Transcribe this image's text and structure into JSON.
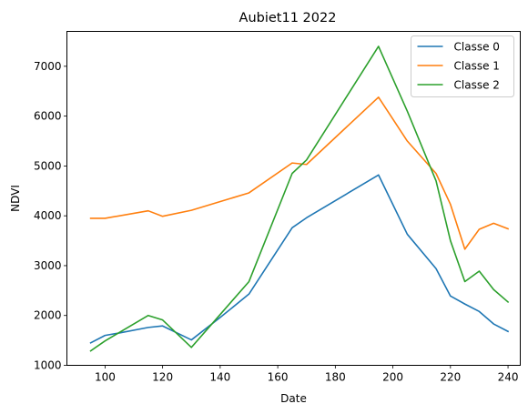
{
  "chart_data": {
    "type": "line",
    "title": "Aubiet11 2022",
    "xlabel": "Date",
    "ylabel": "NDVI",
    "xlim": [
      86.75,
      244.25
    ],
    "ylim": [
      1000,
      7700
    ],
    "xticks": [
      100,
      120,
      140,
      160,
      180,
      200,
      220,
      240
    ],
    "yticks": [
      1000,
      2000,
      3000,
      4000,
      5000,
      6000,
      7000
    ],
    "grid": false,
    "legend_position": "top-right",
    "series": [
      {
        "name": "Classe 0",
        "color": "#1f77b4",
        "x": [
          95,
          100,
          105,
          115,
          120,
          130,
          140,
          150,
          165,
          170,
          195,
          205,
          215,
          220,
          225,
          230,
          235,
          240
        ],
        "y": [
          1450,
          1600,
          1650,
          1760,
          1790,
          1510,
          1960,
          2430,
          3760,
          3960,
          4820,
          3630,
          2940,
          2390,
          2230,
          2080,
          1830,
          1680
        ]
      },
      {
        "name": "Classe 1",
        "color": "#ff7f0e",
        "x": [
          95,
          100,
          115,
          120,
          130,
          150,
          165,
          170,
          195,
          205,
          215,
          220,
          225,
          230,
          235,
          240
        ],
        "y": [
          3950,
          3950,
          4100,
          3990,
          4110,
          4460,
          5060,
          5030,
          6380,
          5500,
          4850,
          4230,
          3330,
          3730,
          3850,
          3740
        ]
      },
      {
        "name": "Classe 2",
        "color": "#2ca02c",
        "x": [
          95,
          100,
          115,
          120,
          130,
          150,
          165,
          170,
          195,
          205,
          215,
          220,
          225,
          230,
          235,
          240
        ],
        "y": [
          1290,
          1490,
          2000,
          1910,
          1360,
          2680,
          4850,
          5120,
          7400,
          6100,
          4700,
          3500,
          2680,
          2890,
          2520,
          2270
        ]
      }
    ]
  }
}
